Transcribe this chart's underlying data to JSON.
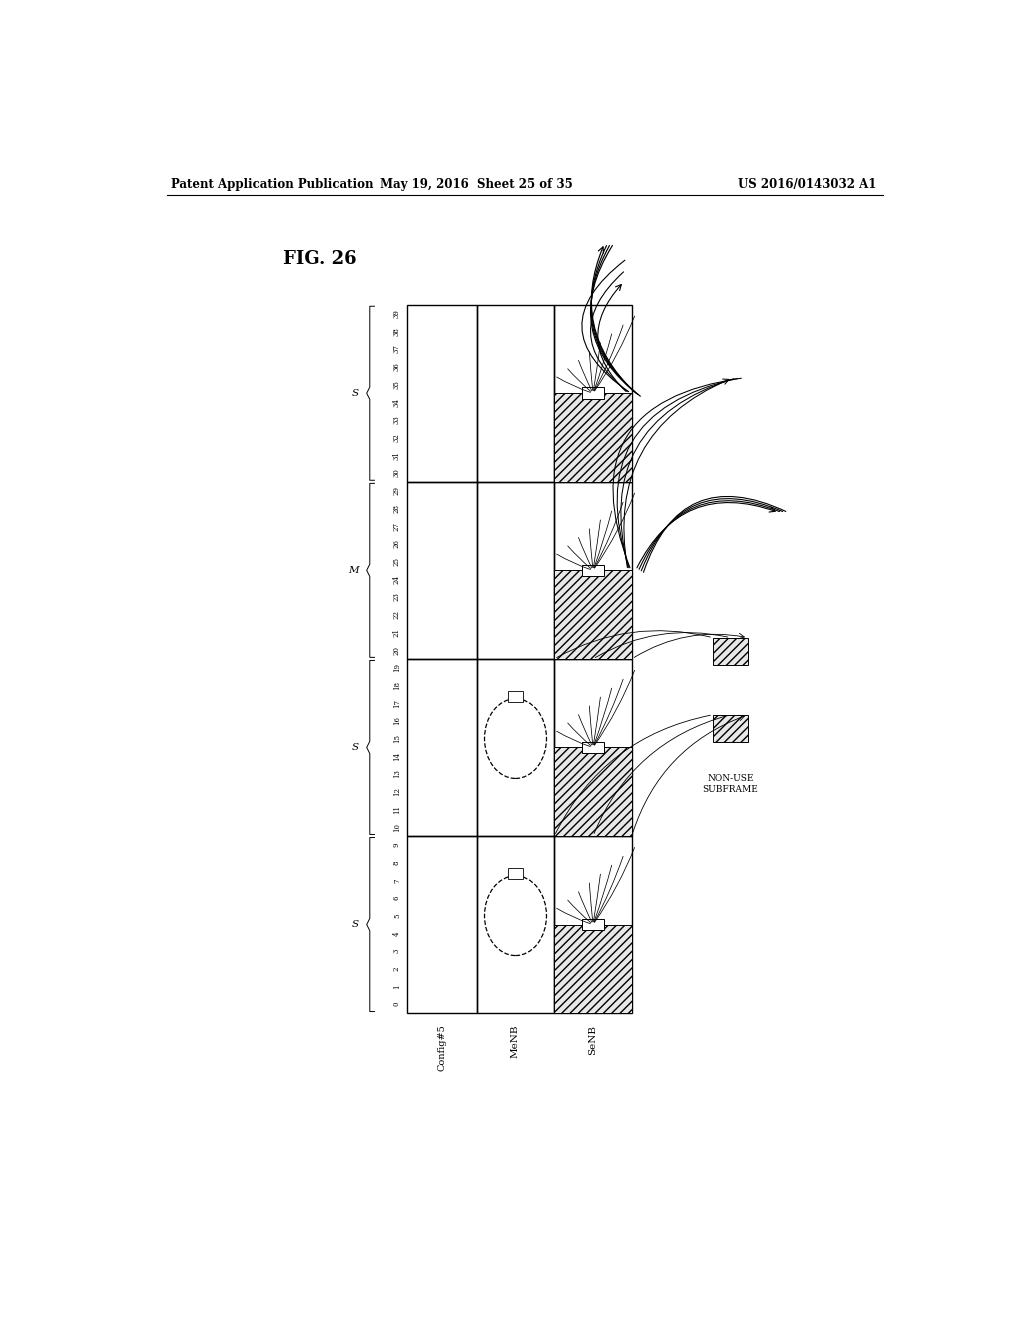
{
  "header_left": "Patent Application Publication",
  "header_mid": "May 19, 2016  Sheet 25 of 35",
  "header_right": "US 2016/0143032 A1",
  "fig_label": "FIG. 26",
  "row_labels": [
    "Config#5",
    "MeNB",
    "SeNB"
  ],
  "non_use_label": "NON-USE\nSUBFRAME",
  "bg_color": "#ffffff"
}
